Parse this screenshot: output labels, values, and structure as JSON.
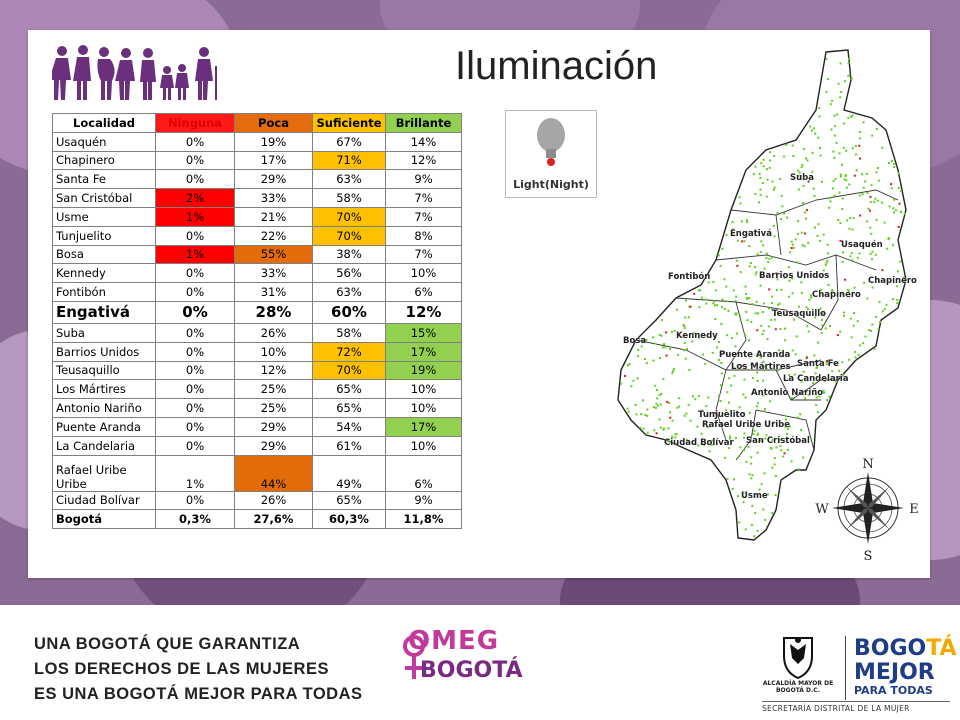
{
  "title": "Iluminación",
  "table": {
    "headers": [
      "Localidad",
      "Ninguna",
      "Poca",
      "Suficiente",
      "Brillante"
    ],
    "rows": [
      {
        "name": "Usaquén",
        "v": [
          "0%",
          "19%",
          "67%",
          "14%"
        ],
        "c": [
          "none",
          "none",
          "none",
          "none"
        ]
      },
      {
        "name": "Chapinero",
        "v": [
          "0%",
          "17%",
          "71%",
          "12%"
        ],
        "c": [
          "none",
          "none",
          "yellow",
          "none"
        ]
      },
      {
        "name": "Santa Fe",
        "v": [
          "0%",
          "29%",
          "63%",
          "9%"
        ],
        "c": [
          "none",
          "none",
          "none",
          "none"
        ]
      },
      {
        "name": "San Cristóbal",
        "v": [
          "2%",
          "33%",
          "58%",
          "7%"
        ],
        "c": [
          "red",
          "none",
          "none",
          "none"
        ]
      },
      {
        "name": "Usme",
        "v": [
          "1%",
          "21%",
          "70%",
          "7%"
        ],
        "c": [
          "red",
          "none",
          "yellow",
          "none"
        ]
      },
      {
        "name": "Tunjuelito",
        "v": [
          "0%",
          "22%",
          "70%",
          "8%"
        ],
        "c": [
          "none",
          "none",
          "yellow",
          "none"
        ]
      },
      {
        "name": "Bosa",
        "v": [
          "1%",
          "55%",
          "38%",
          "7%"
        ],
        "c": [
          "red",
          "orange",
          "none",
          "none"
        ]
      },
      {
        "name": "Kennedy",
        "v": [
          "0%",
          "33%",
          "56%",
          "10%"
        ],
        "c": [
          "none",
          "none",
          "none",
          "none"
        ]
      },
      {
        "name": "Fontibón",
        "v": [
          "0%",
          "31%",
          "63%",
          "6%"
        ],
        "c": [
          "none",
          "none",
          "none",
          "none"
        ]
      },
      {
        "name": "Engativá",
        "v": [
          "0%",
          "28%",
          "60%",
          "12%"
        ],
        "c": [
          "none",
          "none",
          "none",
          "none"
        ],
        "big": true
      },
      {
        "name": "Suba",
        "v": [
          "0%",
          "26%",
          "58%",
          "15%"
        ],
        "c": [
          "none",
          "none",
          "none",
          "green"
        ]
      },
      {
        "name": "Barrios Unidos",
        "v": [
          "0%",
          "10%",
          "72%",
          "17%"
        ],
        "c": [
          "none",
          "none",
          "yellow",
          "green"
        ]
      },
      {
        "name": "Teusaquillo",
        "v": [
          "0%",
          "12%",
          "70%",
          "19%"
        ],
        "c": [
          "none",
          "none",
          "yellow",
          "green"
        ]
      },
      {
        "name": "Los Mártires",
        "v": [
          "0%",
          "25%",
          "65%",
          "10%"
        ],
        "c": [
          "none",
          "none",
          "none",
          "none"
        ]
      },
      {
        "name": "Antonio Nariño",
        "v": [
          "0%",
          "25%",
          "65%",
          "10%"
        ],
        "c": [
          "none",
          "none",
          "none",
          "none"
        ]
      },
      {
        "name": "Puente Aranda",
        "v": [
          "0%",
          "29%",
          "54%",
          "17%"
        ],
        "c": [
          "none",
          "none",
          "none",
          "green"
        ]
      },
      {
        "name": "La Candelaria",
        "v": [
          "0%",
          "29%",
          "61%",
          "10%"
        ],
        "c": [
          "none",
          "none",
          "none",
          "none"
        ]
      },
      {
        "name": "Rafael Uribe Uribe",
        "v": [
          "1%",
          "44%",
          "49%",
          "6%"
        ],
        "c": [
          "none",
          "orange",
          "none",
          "none"
        ],
        "tall": true
      },
      {
        "name": "Ciudad Bolívar",
        "v": [
          "0%",
          "26%",
          "65%",
          "9%"
        ],
        "c": [
          "none",
          "none",
          "none",
          "none"
        ]
      },
      {
        "name": "Bogotá",
        "v": [
          "0,3%",
          "27,6%",
          "60,3%",
          "11,8%"
        ],
        "c": [
          "none",
          "none",
          "none",
          "none"
        ],
        "total": true
      }
    ]
  },
  "light_icon": {
    "label": "Light(Night)"
  },
  "map": {
    "labels": [
      "Suba",
      "Engativá",
      "Usaquén",
      "Fontibón",
      "Barrios Unidos",
      "Chapinero",
      "Chapinero",
      "Teusaquillo",
      "Bosa",
      "Kennedy",
      "Puente Aranda",
      "Santa Fe",
      "Los Mártires",
      "La Candelaria",
      "Antonio Nariño",
      "Tunjuelito",
      "Rafael Uribe Uribe",
      "Ciudad Bolívar",
      "San Cristóbal",
      "Usme"
    ],
    "compass": {
      "n": "N",
      "s": "S",
      "e": "E",
      "w": "W"
    }
  },
  "footer": {
    "line1": "UNA BOGOTÁ QUE GARANTIZA",
    "line2": "LOS DERECHOS DE LAS MUJERES",
    "line3": "ES UNA BOGOTÁ MEJOR PARA TODAS",
    "omeg_top": "OMEG",
    "omeg_bottom": "BOGOTÁ",
    "seal_text": "ALCALDÍA MAYOR DE BOGOTÁ D.C.",
    "bmpt_top_a": "BOGO",
    "bmpt_top_b": "TÁ",
    "bmpt_mid": "MEJOR",
    "bmpt_bottom": "PARA TODAS",
    "secretaria": "SECRETARÍA DISTRITAL DE LA MUJER"
  },
  "colors": {
    "red": "#ff0000",
    "orange": "#e36c09",
    "yellow": "#ffc000",
    "green": "#92d050",
    "purple_band": "#8a6b95",
    "omeg_pink": "#c13a9b"
  }
}
